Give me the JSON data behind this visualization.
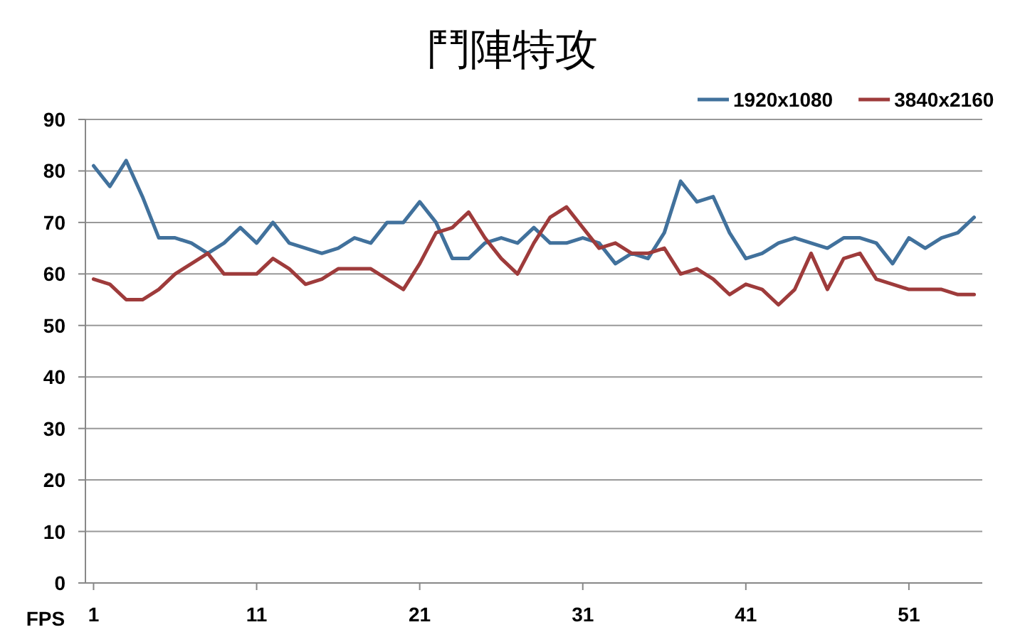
{
  "chart_data": {
    "type": "line",
    "title": "鬥陣特攻",
    "xlabel": "FPS",
    "categories": [
      "1",
      null,
      null,
      null,
      null,
      null,
      null,
      null,
      null,
      null,
      "11",
      null,
      null,
      null,
      null,
      null,
      null,
      null,
      null,
      null,
      "21",
      null,
      null,
      null,
      null,
      null,
      null,
      null,
      null,
      null,
      "31",
      null,
      null,
      null,
      null,
      null,
      null,
      null,
      null,
      null,
      "41",
      null,
      null,
      null,
      null,
      null,
      null,
      null,
      null,
      null,
      "51",
      null,
      null,
      null,
      null
    ],
    "series": [
      {
        "name": "1920x1080",
        "color": "#41719c",
        "values": [
          81,
          77,
          82,
          75,
          67,
          67,
          66,
          64,
          66,
          69,
          66,
          70,
          66,
          65,
          64,
          65,
          67,
          66,
          70,
          70,
          74,
          70,
          63,
          63,
          66,
          67,
          66,
          69,
          66,
          66,
          67,
          66,
          62,
          64,
          63,
          68,
          78,
          74,
          75,
          68,
          63,
          64,
          66,
          67,
          66,
          65,
          67,
          67,
          66,
          62,
          67,
          65,
          67,
          68,
          71
        ]
      },
      {
        "name": "3840x2160",
        "color": "#9e3b3b",
        "values": [
          59,
          58,
          55,
          55,
          57,
          60,
          62,
          64,
          60,
          60,
          60,
          63,
          61,
          58,
          59,
          61,
          61,
          61,
          59,
          57,
          62,
          68,
          69,
          72,
          67,
          63,
          60,
          66,
          71,
          73,
          69,
          65,
          66,
          64,
          64,
          65,
          60,
          61,
          59,
          56,
          58,
          57,
          54,
          57,
          64,
          57,
          63,
          64,
          59,
          58,
          57,
          57,
          57,
          56,
          56
        ]
      }
    ],
    "ylim": [
      0,
      90
    ],
    "yticks": [
      0,
      10,
      20,
      30,
      40,
      50,
      60,
      70,
      80,
      90
    ],
    "grid": "y",
    "legend": "top right"
  }
}
